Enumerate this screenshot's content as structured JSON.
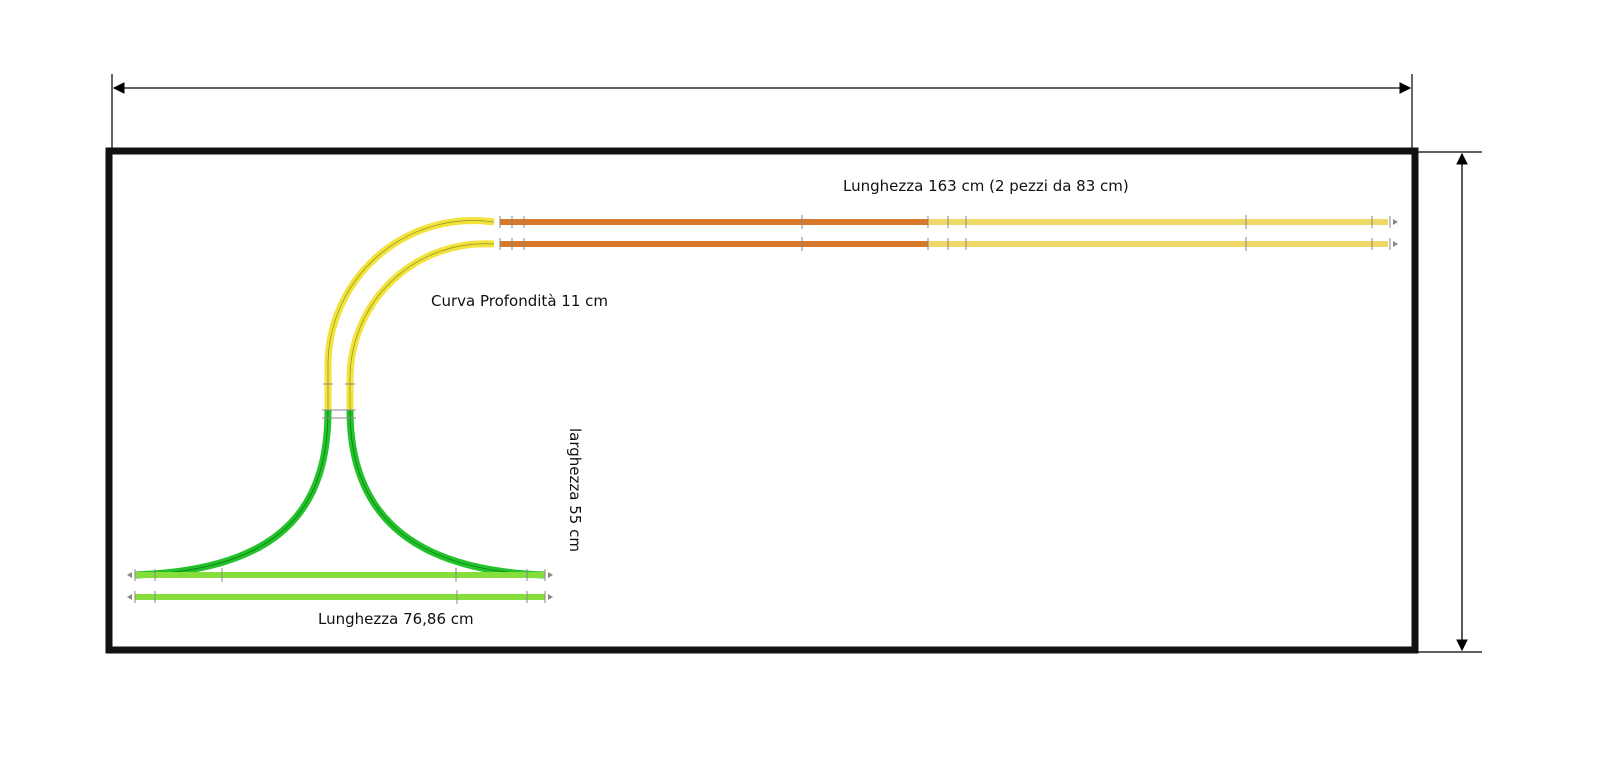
{
  "labels": {
    "top_length": "Lunghezza 163 cm (2 pezzi da 83 cm)",
    "curve_depth": "Curva Profondità 11 cm",
    "width": "larghezza 55 cm",
    "bottom_length": "Lunghezza 76,86 cm"
  },
  "colors": {
    "board_border": "#111111",
    "dimension_line": "#000000",
    "curve_yellow": "#f2e23a",
    "track_orange": "#d8782a",
    "track_light_yellow": "#f0d868",
    "curve_green": "#22c22a",
    "track_light_green": "#86de3a"
  }
}
